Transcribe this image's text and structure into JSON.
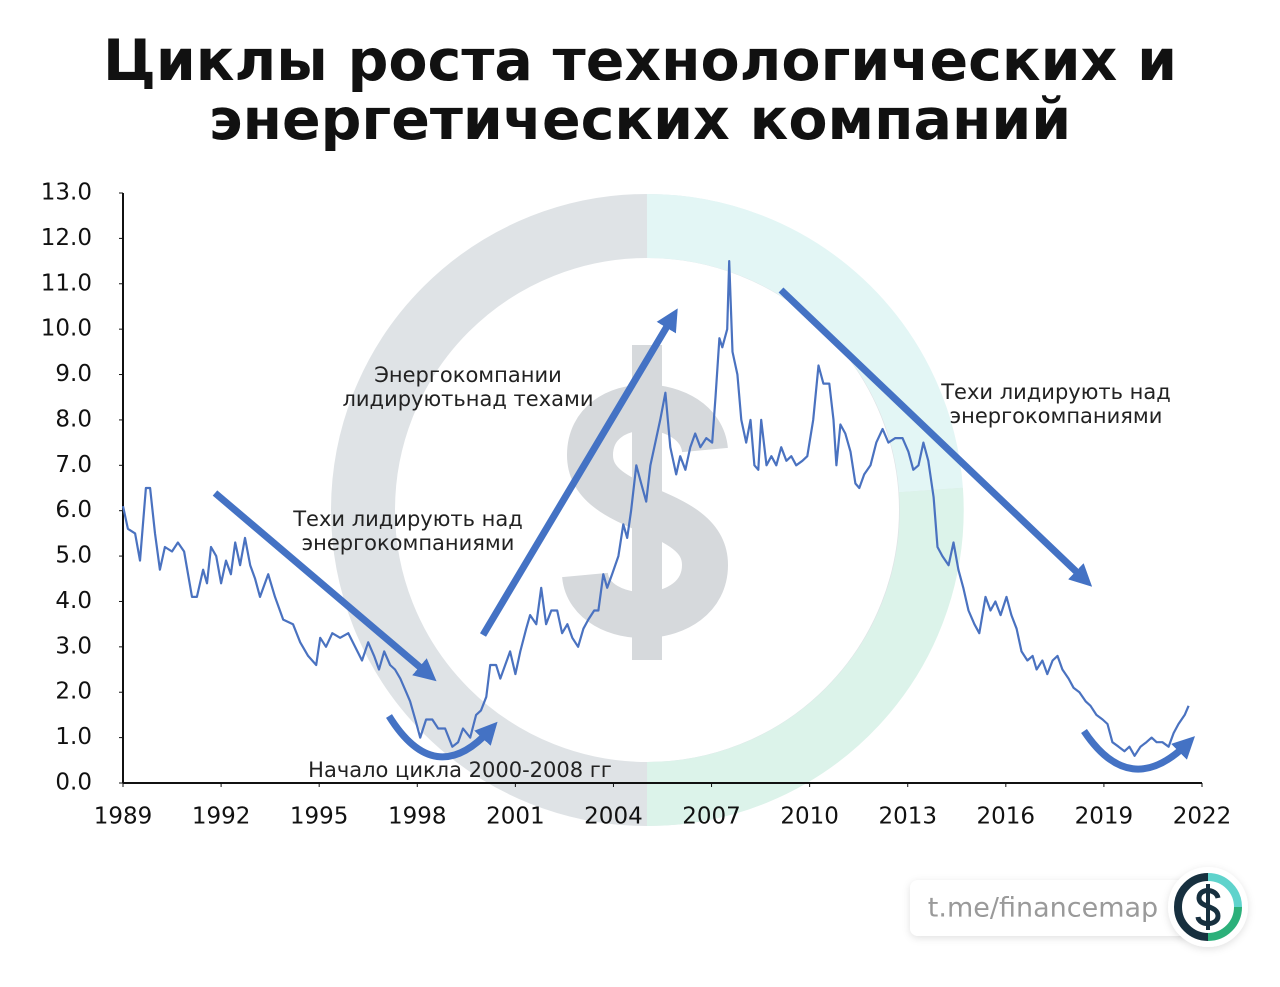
{
  "chart_data": {
    "type": "line",
    "title": [
      "Циклы роста технологических и",
      "энергетических компаний"
    ],
    "xlim": [
      1989,
      2022
    ],
    "xticks": [
      1989,
      1992,
      1995,
      1998,
      2001,
      2004,
      2007,
      2010,
      2013,
      2016,
      2019,
      2022
    ],
    "ylim": [
      0,
      13
    ],
    "yticks": [
      {
        "value": 0,
        "label": "0.0"
      },
      {
        "value": 1,
        "label": "1.0"
      },
      {
        "value": 2,
        "label": "2.0"
      },
      {
        "value": 3,
        "label": "3.0"
      },
      {
        "value": 4,
        "label": "4.0"
      },
      {
        "value": 5,
        "label": "5.0"
      },
      {
        "value": 6,
        "label": "6.0"
      },
      {
        "value": 7,
        "label": "7.0"
      },
      {
        "value": 8,
        "label": "8.0"
      },
      {
        "value": 9,
        "label": "9.0"
      },
      {
        "value": 10,
        "label": "10.0"
      },
      {
        "value": 11,
        "label": "11.0"
      },
      {
        "value": 12,
        "label": "12.0"
      },
      {
        "value": 13,
        "label": "13.0"
      }
    ],
    "color": "#4a72c0",
    "x": [
      1989.0,
      1989.15,
      1989.37,
      1989.52,
      1989.7,
      1989.83,
      1989.98,
      1990.13,
      1990.28,
      1990.5,
      1990.68,
      1990.87,
      1991.11,
      1991.26,
      1991.45,
      1991.57,
      1991.69,
      1991.85,
      1992.0,
      1992.15,
      1992.3,
      1992.43,
      1992.58,
      1992.73,
      1992.89,
      1993.04,
      1993.19,
      1993.44,
      1993.65,
      1993.9,
      1994.2,
      1994.42,
      1994.66,
      1994.91,
      1995.03,
      1995.21,
      1995.4,
      1995.64,
      1995.89,
      1996.1,
      1996.31,
      1996.5,
      1996.68,
      1996.83,
      1996.99,
      1997.17,
      1997.32,
      1997.48,
      1997.66,
      1997.78,
      1997.94,
      1998.09,
      1998.27,
      1998.46,
      1998.64,
      1998.85,
      1999.07,
      1999.25,
      1999.4,
      1999.62,
      1999.8,
      1999.95,
      2000.11,
      2000.23,
      2000.41,
      2000.54,
      2000.69,
      2000.84,
      2001.0,
      2001.15,
      2001.33,
      2001.45,
      2001.64,
      2001.79,
      2001.94,
      2002.1,
      2002.28,
      2002.43,
      2002.59,
      2002.74,
      2002.92,
      2003.08,
      2003.23,
      2003.41,
      2003.54,
      2003.69,
      2003.81,
      2003.96,
      2004.15,
      2004.3,
      2004.42,
      2004.54,
      2004.7,
      2004.85,
      2005.0,
      2005.13,
      2005.28,
      2005.43,
      2005.59,
      2005.74,
      2005.92,
      2006.04,
      2006.2,
      2006.35,
      2006.5,
      2006.66,
      2006.84,
      2007.02,
      2007.12,
      2007.24,
      2007.33,
      2007.48,
      2007.54,
      2007.64,
      2007.79,
      2007.91,
      2008.06,
      2008.19,
      2008.31,
      2008.43,
      2008.52,
      2008.68,
      2008.83,
      2008.98,
      2009.13,
      2009.29,
      2009.44,
      2009.59,
      2009.78,
      2009.93,
      2010.11,
      2010.27,
      2010.42,
      2010.6,
      2010.73,
      2010.82,
      2010.94,
      2011.09,
      2011.25,
      2011.4,
      2011.52,
      2011.67,
      2011.86,
      2012.04,
      2012.23,
      2012.41,
      2012.62,
      2012.84,
      2013.02,
      2013.17,
      2013.33,
      2013.48,
      2013.63,
      2013.79,
      2013.91,
      2014.06,
      2014.25,
      2014.4,
      2014.55,
      2014.7,
      2014.86,
      2015.04,
      2015.19,
      2015.38,
      2015.53,
      2015.68,
      2015.84,
      2016.02,
      2016.17,
      2016.33,
      2016.48,
      2016.66,
      2016.82,
      2016.94,
      2017.12,
      2017.27,
      2017.43,
      2017.58,
      2017.73,
      2017.92,
      2018.07,
      2018.25,
      2018.44,
      2018.59,
      2018.77,
      2018.96,
      2019.11,
      2019.26,
      2019.45,
      2019.63,
      2019.78,
      2019.94,
      2020.12,
      2020.3,
      2020.46,
      2020.61,
      2020.79,
      2020.98,
      2021.13,
      2021.28,
      2021.47,
      2021.59
    ],
    "values": [
      6.1,
      5.6,
      5.5,
      4.9,
      6.5,
      6.5,
      5.5,
      4.7,
      5.2,
      5.1,
      5.3,
      5.1,
      4.1,
      4.1,
      4.7,
      4.4,
      5.2,
      5.0,
      4.4,
      4.9,
      4.6,
      5.3,
      4.8,
      5.4,
      4.8,
      4.5,
      4.1,
      4.6,
      4.1,
      3.6,
      3.5,
      3.1,
      2.8,
      2.6,
      3.2,
      3.0,
      3.3,
      3.2,
      3.3,
      3.0,
      2.7,
      3.1,
      2.8,
      2.5,
      2.9,
      2.6,
      2.5,
      2.3,
      2.0,
      1.8,
      1.4,
      1.0,
      1.4,
      1.4,
      1.2,
      1.2,
      0.8,
      0.9,
      1.2,
      1.0,
      1.5,
      1.6,
      1.9,
      2.6,
      2.6,
      2.3,
      2.6,
      2.9,
      2.4,
      2.9,
      3.4,
      3.7,
      3.5,
      4.3,
      3.5,
      3.8,
      3.8,
      3.3,
      3.5,
      3.2,
      3.0,
      3.4,
      3.6,
      3.8,
      3.8,
      4.6,
      4.3,
      4.6,
      5.0,
      5.7,
      5.4,
      6.0,
      7.0,
      6.6,
      6.2,
      7.0,
      7.5,
      8.0,
      8.6,
      7.4,
      6.8,
      7.2,
      6.9,
      7.4,
      7.7,
      7.4,
      7.6,
      7.5,
      8.5,
      9.8,
      9.6,
      10.0,
      11.5,
      9.5,
      9.0,
      8.0,
      7.5,
      8.0,
      7.0,
      6.9,
      8.0,
      7.0,
      7.2,
      7.0,
      7.4,
      7.1,
      7.2,
      7.0,
      7.1,
      7.2,
      8.0,
      9.2,
      8.8,
      8.8,
      8.0,
      7.0,
      7.9,
      7.7,
      7.3,
      6.6,
      6.5,
      6.8,
      7.0,
      7.5,
      7.8,
      7.5,
      7.6,
      7.6,
      7.3,
      6.9,
      7.0,
      7.5,
      7.1,
      6.3,
      5.2,
      5.0,
      4.8,
      5.3,
      4.7,
      4.3,
      3.8,
      3.5,
      3.3,
      4.1,
      3.8,
      4.0,
      3.7,
      4.1,
      3.7,
      3.4,
      2.9,
      2.7,
      2.8,
      2.5,
      2.7,
      2.4,
      2.7,
      2.8,
      2.5,
      2.3,
      2.1,
      2.0,
      1.8,
      1.7,
      1.5,
      1.4,
      1.3,
      0.9,
      0.8,
      0.7,
      0.8,
      0.6,
      0.8,
      0.9,
      1.0,
      0.9,
      0.9,
      0.8,
      1.1,
      1.3,
      1.5,
      1.7
    ],
    "annotations": [
      [
        "Энергокомпании",
        "лидируютьнад техами"
      ],
      [
        "Техи лидирують над",
        "энергокомпаниями"
      ],
      [
        "Техи лидирують над",
        "энергокомпаниями"
      ],
      "Начало цикла 2000-2008 гг"
    ],
    "brand": "t.me/financemap"
  }
}
